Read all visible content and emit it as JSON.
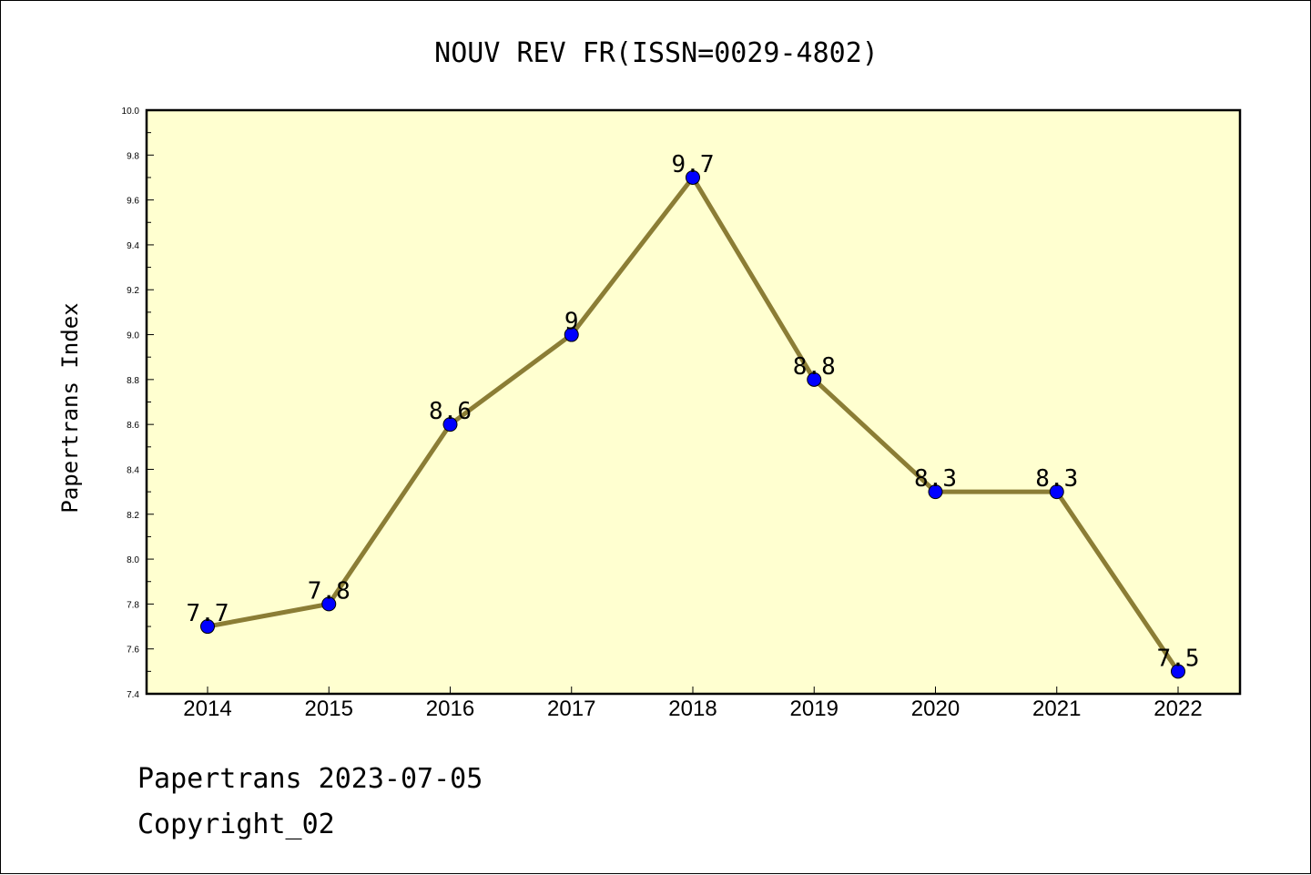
{
  "chart_data": {
    "type": "line",
    "title": "NOUV REV FR(ISSN=0029-4802)",
    "ylabel": "Papertrans Index",
    "xlabel": "",
    "ylim": [
      7.4,
      10.0
    ],
    "yticks": [
      "7.4",
      "7.6",
      "7.8",
      "8.0",
      "8.2",
      "8.4",
      "8.6",
      "8.8",
      "9.0",
      "9.2",
      "9.4",
      "9.6",
      "9.8",
      "10.0"
    ],
    "categories": [
      "2014",
      "2015",
      "2016",
      "2017",
      "2018",
      "2019",
      "2020",
      "2021",
      "2022"
    ],
    "values": [
      7.7,
      7.8,
      8.6,
      9.0,
      9.7,
      8.8,
      8.3,
      8.3,
      7.5
    ],
    "data_labels": [
      "7.7",
      "7.8",
      "8.6",
      "9",
      "9.7",
      "8.8",
      "8.3",
      "8.3",
      "7.5"
    ],
    "colors": {
      "plot_background": "#ffffd0",
      "line": "#8b7d35",
      "marker": "#0000ff"
    },
    "grid": false,
    "legend": "none"
  },
  "footer": {
    "line1": "Papertrans 2023-07-05",
    "line2": "Copyright_02"
  }
}
